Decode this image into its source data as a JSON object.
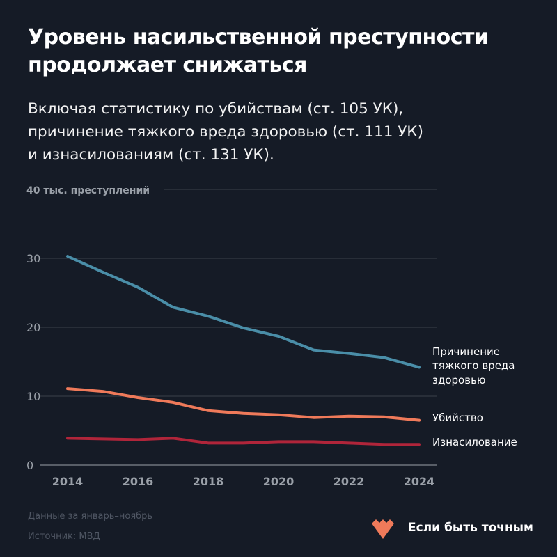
{
  "title": "Уровень насильственной преступности продолжает снижаться",
  "subtitle_lines": [
    "Включая статистику по убийствам (ст. 105 УК),",
    "причинение тяжкого вреда здоровью (ст. 111 УК)",
    "и изнасилованиям (ст. 131 УК)."
  ],
  "footer": {
    "note": "Данные за январь–ноябрь",
    "source": "Источник: МВД",
    "brand": "Если быть точным"
  },
  "chart_data": {
    "type": "line",
    "x": [
      2014,
      2015,
      2016,
      2017,
      2018,
      2019,
      2020,
      2021,
      2022,
      2023,
      2024
    ],
    "xticks": [
      "2014",
      "2016",
      "2018",
      "2020",
      "2022",
      "2024"
    ],
    "yticks": [
      "0",
      "10",
      "20",
      "30",
      "40 тыс. преступлений"
    ],
    "ylim": [
      0,
      40
    ],
    "grid": true,
    "series": [
      {
        "name": "Причинение тяжкого вреда здоровью",
        "label_lines": [
          "Причинение",
          "тяжкого вреда",
          "здоровью"
        ],
        "color": "#4a8ea8",
        "values": [
          30.3,
          28.0,
          25.8,
          22.9,
          21.6,
          19.9,
          18.7,
          16.7,
          16.2,
          15.6,
          14.2
        ]
      },
      {
        "name": "Убийство",
        "label_lines": [
          "Убийство"
        ],
        "color": "#ef7a5a",
        "values": [
          11.1,
          10.7,
          9.8,
          9.1,
          7.9,
          7.5,
          7.3,
          6.9,
          7.1,
          7.0,
          6.5
        ]
      },
      {
        "name": "Изнасилование",
        "label_lines": [
          "Изнасилование"
        ],
        "color": "#b0253a",
        "values": [
          3.9,
          3.8,
          3.7,
          3.9,
          3.2,
          3.2,
          3.4,
          3.4,
          3.2,
          3.0,
          3.0
        ]
      }
    ]
  }
}
